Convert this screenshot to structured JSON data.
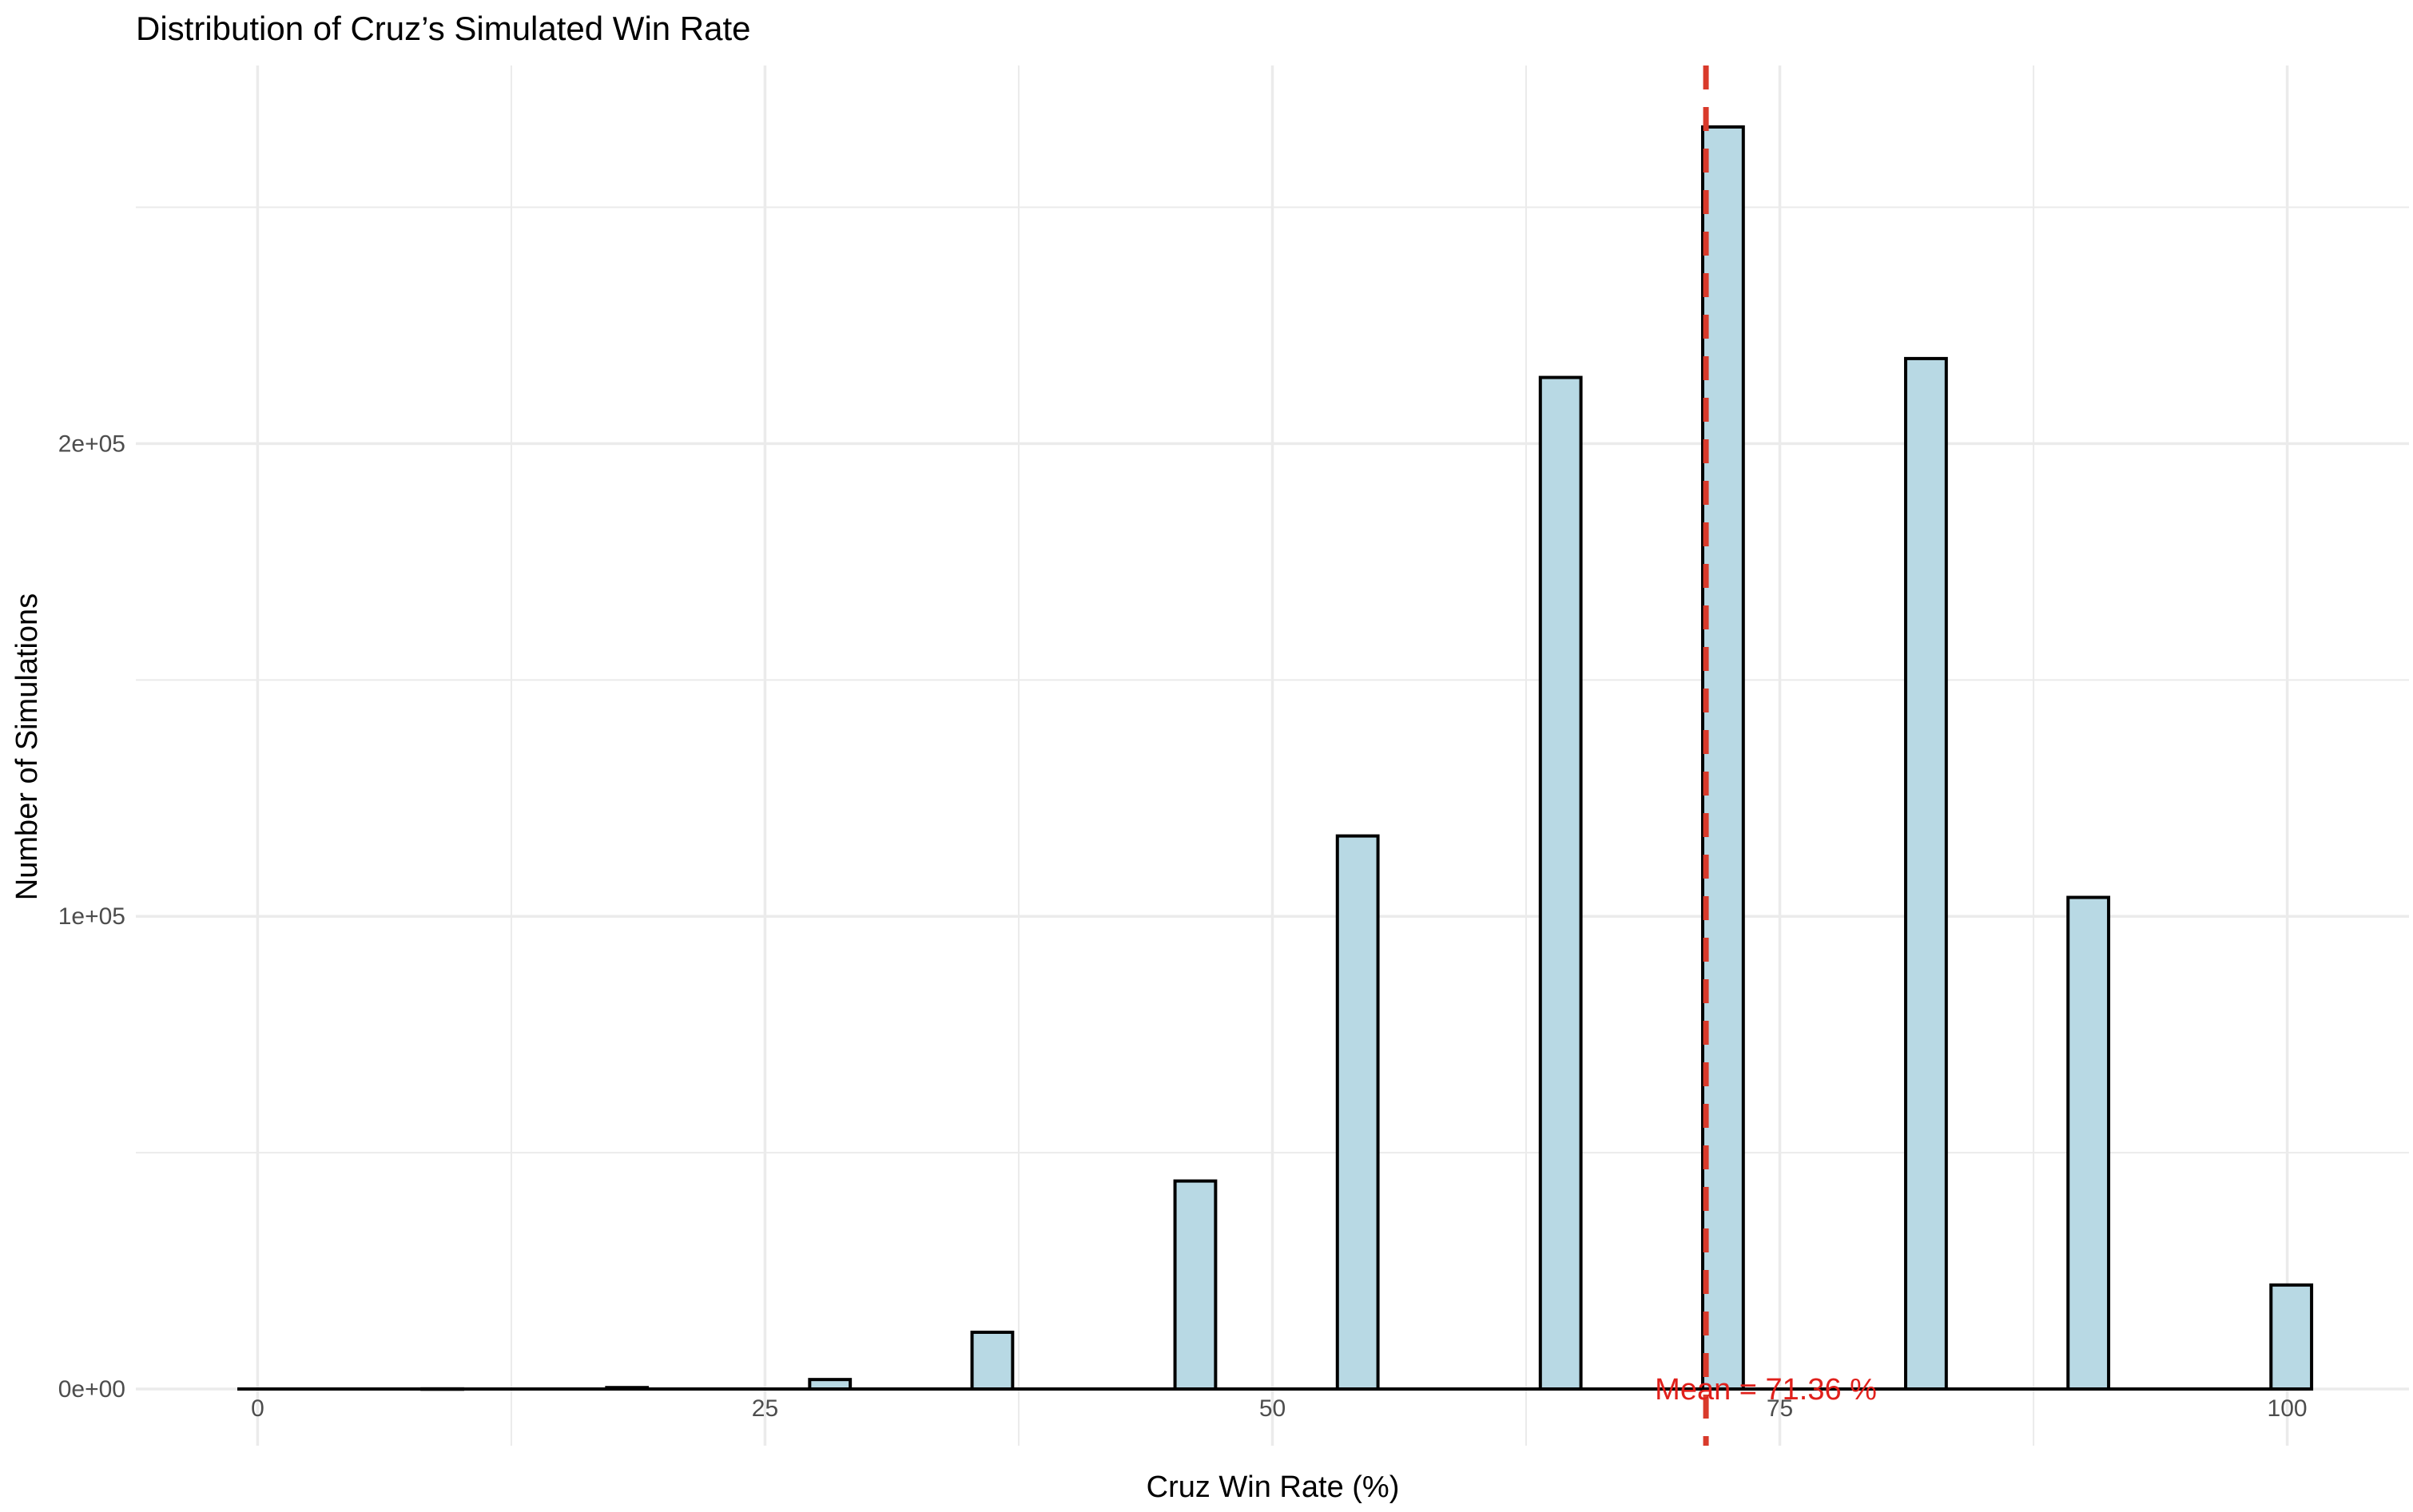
{
  "chart_data": {
    "type": "bar",
    "title": "Distribution of Cruz’s Simulated Win Rate",
    "xlabel": "Cruz Win Rate (%)",
    "ylabel": "Number of Simulations",
    "xlim": [
      -6,
      106
    ],
    "ylim": [
      -12000,
      280000
    ],
    "x_ticks": [
      0,
      25,
      50,
      75,
      100
    ],
    "x_tick_labels": [
      "0",
      "25",
      "50",
      "75",
      "100"
    ],
    "y_ticks": [
      0,
      100000,
      200000
    ],
    "y_tick_labels": [
      "0e+00",
      "1e+05",
      "2e+05"
    ],
    "x_minor_ticks": [
      12.5,
      37.5,
      62.5,
      87.5
    ],
    "y_minor_ticks": [
      50000,
      150000,
      250000
    ],
    "bin_width": 2,
    "bins": [
      {
        "x": 0,
        "count": 0
      },
      {
        "x": 9.1,
        "count": 30
      },
      {
        "x": 18.2,
        "count": 300
      },
      {
        "x": 28.2,
        "count": 2000
      },
      {
        "x": 36.2,
        "count": 12000
      },
      {
        "x": 46.2,
        "count": 44000
      },
      {
        "x": 54.2,
        "count": 117000
      },
      {
        "x": 64.2,
        "count": 214000
      },
      {
        "x": 72.2,
        "count": 267000
      },
      {
        "x": 82.2,
        "count": 218000
      },
      {
        "x": 90.2,
        "count": 104000
      },
      {
        "x": 100.2,
        "count": 22000
      }
    ],
    "baseline_range": [
      -1,
      101
    ],
    "mean_line": {
      "x": 71.36,
      "label": "Mean = 71.36 %",
      "label_y": 0
    },
    "grid": true,
    "bar_fill": "#b8d9e4",
    "bar_stroke": "#000000",
    "mean_color": "#d93a2b",
    "grid_color": "#ebebeb"
  }
}
